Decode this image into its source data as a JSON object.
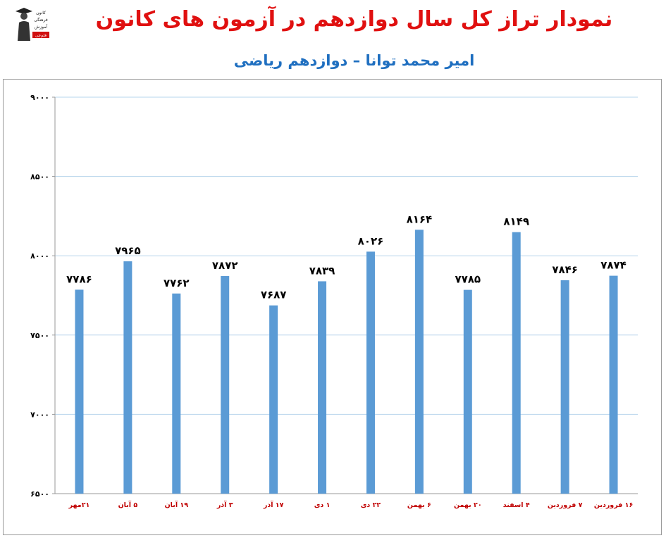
{
  "header": {
    "title": "نمودار تراز کل سال دوازدهم در آزمون های کانون",
    "subtitle": "امیر محمد توانا – دوازدهم ریاضی",
    "logo_text": [
      "کانون",
      "فرهنگی",
      "آموزش",
      "قلم‌چی"
    ]
  },
  "colors": {
    "title": "#e01010",
    "subtitle": "#1f6fc0",
    "bar": "#5b9bd5",
    "grid": "#b7d4ec",
    "x_labels": "#c00000"
  },
  "chart_data": {
    "type": "bar",
    "title": "",
    "xlabel": "",
    "ylabel": "",
    "ylim": [
      6500,
      9000
    ],
    "yticks": [
      6500,
      7000,
      7500,
      8000,
      8500,
      9000
    ],
    "ytick_labels": [
      "۶۵۰۰",
      "۷۰۰۰",
      "۷۵۰۰",
      "۸۰۰۰",
      "۸۵۰۰",
      "۹۰۰۰"
    ],
    "grid": true,
    "legend": "none",
    "categories": [
      "۲۱مهر",
      "۵ آبان",
      "۱۹ آبان",
      "۳ آذر",
      "۱۷ آذر",
      "۱ دی",
      "۲۲ دی",
      "۶ بهمن",
      "۲۰ بهمن",
      "۴ اسفند",
      "۷ فروردین",
      "۱۶ فروردین"
    ],
    "values": [
      7786,
      7965,
      7762,
      7872,
      7687,
      7839,
      8026,
      8164,
      7785,
      8149,
      7846,
      7874
    ],
    "value_labels": [
      "۷۷۸۶",
      "۷۹۶۵",
      "۷۷۶۲",
      "۷۸۷۲",
      "۷۶۸۷",
      "۷۸۳۹",
      "۸۰۲۶",
      "۸۱۶۴",
      "۷۷۸۵",
      "۸۱۴۹",
      "۷۸۴۶",
      "۷۸۷۴"
    ]
  }
}
